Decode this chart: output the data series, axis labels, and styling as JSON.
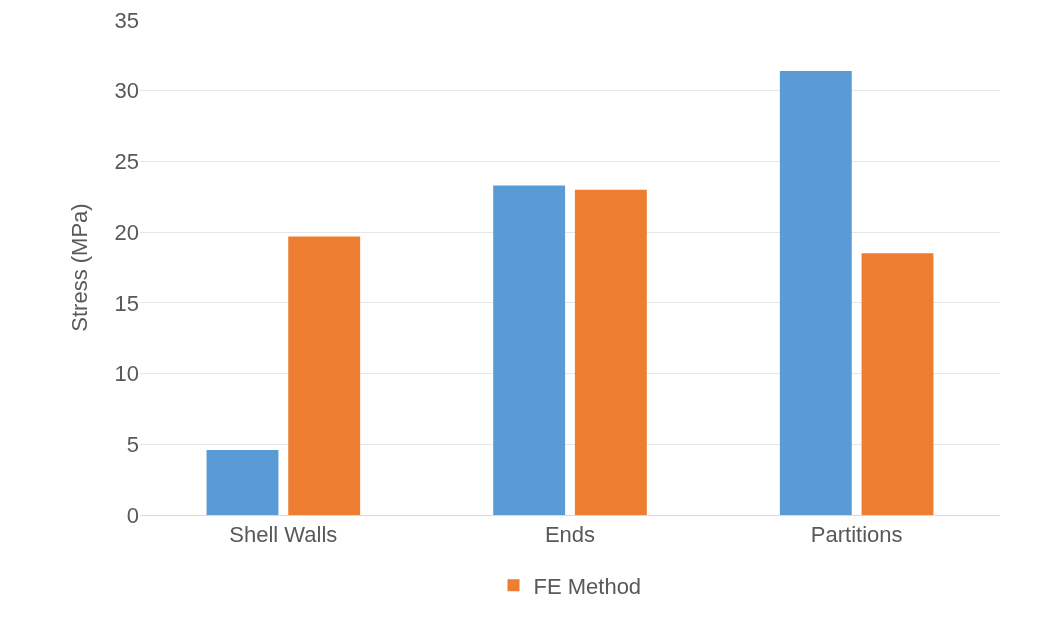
{
  "chart_data": {
    "type": "bar",
    "ylabel": "Stress (MPa)",
    "categories": [
      "Shell Walls",
      "Ends",
      "Partitions"
    ],
    "series": [
      {
        "color": "#5b9bd5",
        "values": [
          4.6,
          23.3,
          31.4
        ]
      },
      {
        "name": "FE Method",
        "color": "#ed7d31",
        "values": [
          19.7,
          23.0,
          18.5
        ]
      }
    ],
    "ylim": [
      0,
      35
    ],
    "yticks": [
      0,
      5,
      10,
      15,
      20,
      25,
      30,
      35
    ],
    "grid": "y",
    "legend": "bottom"
  }
}
